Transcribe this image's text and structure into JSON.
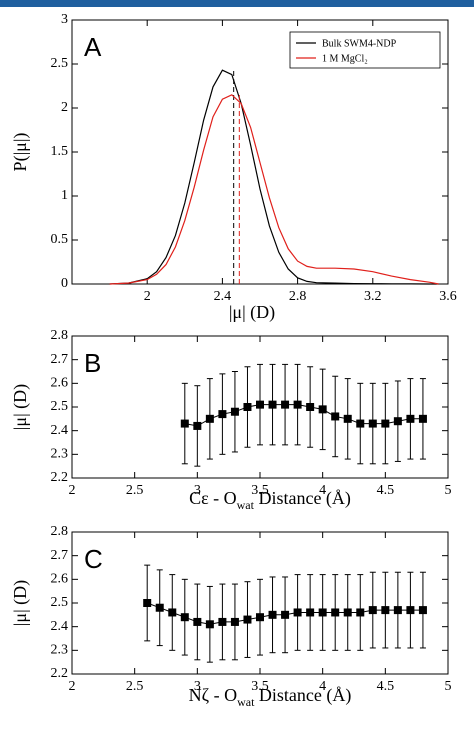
{
  "header_bar_color": "#1f5f9f",
  "bottom_caption_fragment": "",
  "chart_data": [
    {
      "panel": "A",
      "type": "line",
      "xlabel": "|μ| (D)",
      "ylabel": "P(|μ|)",
      "xlim": [
        1.6,
        3.6
      ],
      "ylim": [
        0,
        3
      ],
      "xticks": [
        2,
        2.4,
        2.8,
        3.2,
        3.6
      ],
      "xtick_labels": [
        "2",
        "2.4",
        "2.8",
        "3.2",
        "3.6"
      ],
      "yticks": [
        0,
        0.5,
        1,
        1.5,
        2,
        2.5,
        3
      ],
      "ytick_labels": [
        "0",
        "0.5",
        "1",
        "1.5",
        "2",
        "2.5",
        "3"
      ],
      "legend": {
        "position": "top-right",
        "entries": [
          "Bulk SWM4-NDP",
          "1 M MgCl₂"
        ]
      },
      "series": [
        {
          "name": "Bulk SWM4-NDP",
          "color": "#000000",
          "x": [
            1.8,
            1.9,
            2.0,
            2.05,
            2.1,
            2.15,
            2.2,
            2.25,
            2.3,
            2.35,
            2.4,
            2.45,
            2.5,
            2.55,
            2.6,
            2.65,
            2.7,
            2.75,
            2.8,
            2.85,
            2.9,
            3.0,
            3.1,
            3.2,
            3.3,
            3.4,
            3.5,
            3.55
          ],
          "y": [
            0,
            0.01,
            0.06,
            0.14,
            0.3,
            0.55,
            0.92,
            1.38,
            1.86,
            2.24,
            2.43,
            2.38,
            2.05,
            1.58,
            1.08,
            0.66,
            0.36,
            0.17,
            0.07,
            0.03,
            0.015,
            0.01,
            0.005,
            0.003,
            0.002,
            0.001,
            0.0,
            0.0
          ],
          "marker_line_x": 2.46,
          "marker_line_y": 2.43
        },
        {
          "name": "1 M MgCl₂",
          "color": "#e0201b",
          "x": [
            1.8,
            1.9,
            2.0,
            2.05,
            2.1,
            2.15,
            2.2,
            2.25,
            2.3,
            2.35,
            2.4,
            2.45,
            2.5,
            2.55,
            2.6,
            2.65,
            2.7,
            2.75,
            2.8,
            2.85,
            2.9,
            2.95,
            3.0,
            3.1,
            3.2,
            3.3,
            3.4,
            3.5,
            3.55
          ],
          "y": [
            0,
            0.01,
            0.05,
            0.11,
            0.22,
            0.42,
            0.72,
            1.1,
            1.52,
            1.9,
            2.1,
            2.15,
            2.05,
            1.78,
            1.38,
            0.98,
            0.64,
            0.4,
            0.26,
            0.2,
            0.18,
            0.18,
            0.18,
            0.17,
            0.14,
            0.09,
            0.05,
            0.02,
            0.0
          ],
          "marker_line_x": 2.49,
          "marker_line_y": 2.15
        }
      ]
    },
    {
      "panel": "B",
      "type": "scatter",
      "xlabel": "Cε - Owat Distance (Å)",
      "xlabel_main": "Cε - O",
      "xlabel_sub": "wat",
      "xlabel_tail": " Distance (Å)",
      "ylabel": "|μ| (D)",
      "xlim": [
        2,
        5
      ],
      "ylim": [
        2.2,
        2.8
      ],
      "xticks": [
        2,
        2.5,
        3,
        3.5,
        4,
        4.5,
        5
      ],
      "xtick_labels": [
        "2",
        "2.5",
        "3",
        "3.5",
        "4",
        "4.5",
        "5"
      ],
      "yticks": [
        2.2,
        2.3,
        2.4,
        2.5,
        2.6,
        2.7,
        2.8
      ],
      "ytick_labels": [
        "2.2",
        "2.3",
        "2.4",
        "2.5",
        "2.6",
        "2.7",
        "2.8"
      ],
      "x": [
        2.9,
        3.0,
        3.1,
        3.2,
        3.3,
        3.4,
        3.5,
        3.6,
        3.7,
        3.8,
        3.9,
        4.0,
        4.1,
        4.2,
        4.3,
        4.4,
        4.5,
        4.6,
        4.7,
        4.8
      ],
      "values": [
        2.43,
        2.42,
        2.45,
        2.47,
        2.48,
        2.5,
        2.51,
        2.51,
        2.51,
        2.51,
        2.5,
        2.49,
        2.46,
        2.45,
        2.43,
        2.43,
        2.43,
        2.44,
        2.45,
        2.45
      ],
      "errors": [
        0.17,
        0.17,
        0.17,
        0.17,
        0.17,
        0.17,
        0.17,
        0.17,
        0.17,
        0.17,
        0.17,
        0.17,
        0.17,
        0.17,
        0.17,
        0.17,
        0.17,
        0.17,
        0.17,
        0.17
      ]
    },
    {
      "panel": "C",
      "type": "scatter",
      "xlabel": "Nζ - Owat Distance (Å)",
      "xlabel_main": "Nζ - O",
      "xlabel_sub": "wat",
      "xlabel_tail": " Distance (Å)",
      "ylabel": "|μ| (D)",
      "xlim": [
        2,
        5
      ],
      "ylim": [
        2.2,
        2.8
      ],
      "xticks": [
        2,
        2.5,
        3,
        3.5,
        4,
        4.5,
        5
      ],
      "xtick_labels": [
        "2",
        "2.5",
        "3",
        "3.5",
        "4",
        "4.5",
        "5"
      ],
      "yticks": [
        2.2,
        2.3,
        2.4,
        2.5,
        2.6,
        2.7,
        2.8
      ],
      "ytick_labels": [
        "2.2",
        "2.3",
        "2.4",
        "2.5",
        "2.6",
        "2.7",
        "2.8"
      ],
      "x": [
        2.6,
        2.7,
        2.8,
        2.9,
        3.0,
        3.1,
        3.2,
        3.3,
        3.4,
        3.5,
        3.6,
        3.7,
        3.8,
        3.9,
        4.0,
        4.1,
        4.2,
        4.3,
        4.4,
        4.5,
        4.6,
        4.7,
        4.8
      ],
      "values": [
        2.5,
        2.48,
        2.46,
        2.44,
        2.42,
        2.41,
        2.42,
        2.42,
        2.43,
        2.44,
        2.45,
        2.45,
        2.46,
        2.46,
        2.46,
        2.46,
        2.46,
        2.46,
        2.47,
        2.47,
        2.47,
        2.47,
        2.47
      ],
      "errors": [
        0.16,
        0.16,
        0.16,
        0.16,
        0.16,
        0.16,
        0.16,
        0.16,
        0.16,
        0.16,
        0.16,
        0.16,
        0.16,
        0.16,
        0.16,
        0.16,
        0.16,
        0.16,
        0.16,
        0.16,
        0.16,
        0.16,
        0.16
      ]
    }
  ]
}
